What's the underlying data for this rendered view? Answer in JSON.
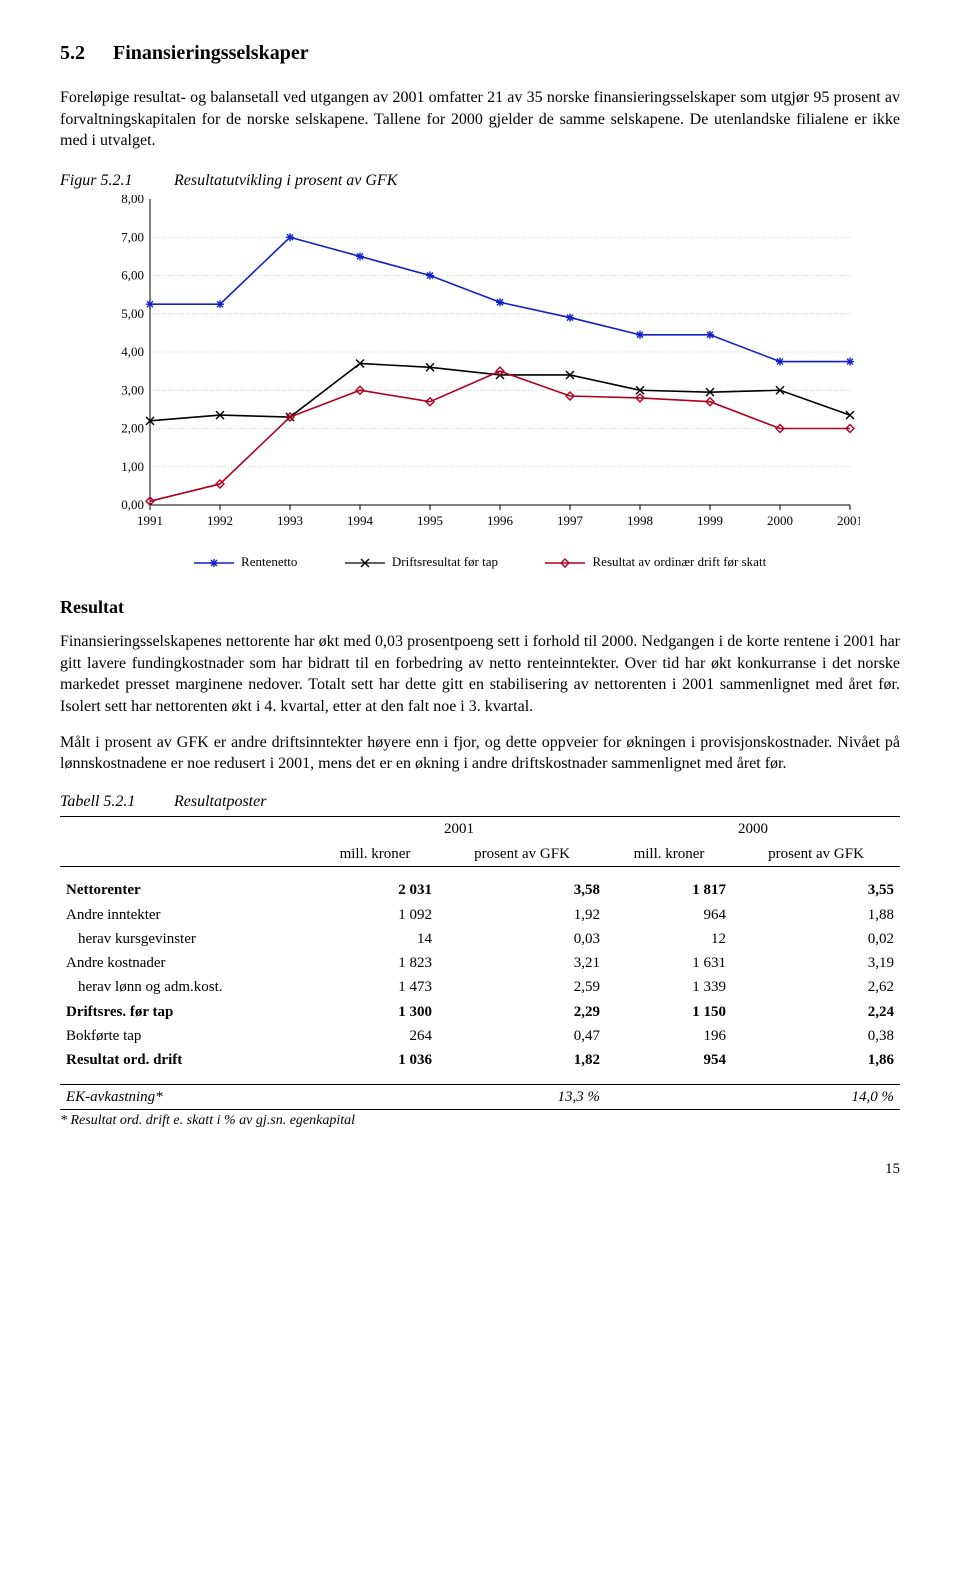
{
  "section": {
    "number": "5.2",
    "title": "Finansieringsselskaper"
  },
  "intro_p1": "Foreløpige resultat- og balansetall ved utgangen av 2001 omfatter 21 av 35 norske finansieringsselskaper som utgjør 95 prosent av forvaltningskapitalen for de norske selskapene. Tallene for 2000 gjelder de samme selskapene. De utenlandske filialene er ikke med i utvalget.",
  "figure": {
    "num": "Figur 5.2.1",
    "title": "Resultatutvikling i prosent av GFK",
    "ylim": [
      0,
      8
    ],
    "ytick_step": 1,
    "ytick_labels": [
      "0,00",
      "1,00",
      "2,00",
      "3,00",
      "4,00",
      "5,00",
      "6,00",
      "7,00",
      "8,00"
    ],
    "years": [
      1991,
      1992,
      1993,
      1994,
      1995,
      1996,
      1997,
      1998,
      1999,
      2000,
      2001
    ],
    "series": [
      {
        "name": "Rentenetto",
        "color": "#1020c8",
        "marker": "star",
        "values": [
          5.25,
          5.25,
          7.0,
          6.5,
          6.0,
          5.3,
          4.9,
          4.45,
          4.45,
          3.75,
          3.75
        ]
      },
      {
        "name": "Driftsresultat før tap",
        "color": "#000000",
        "marker": "x",
        "values": [
          2.2,
          2.35,
          2.3,
          3.7,
          3.6,
          3.4,
          3.4,
          3.0,
          2.95,
          3.0,
          2.35
        ]
      },
      {
        "name": "Resultat av ordinær drift før skatt",
        "color": "#b00020",
        "marker": "diamond",
        "values": [
          0.1,
          0.55,
          2.3,
          3.0,
          2.7,
          3.5,
          2.85,
          2.8,
          2.7,
          2.0,
          2.0
        ]
      }
    ],
    "grid_color": "#bdbdbd",
    "background_color": "#ffffff",
    "label_fontsize": 13
  },
  "resultat_head": "Resultat",
  "p2": "Finansieringsselskapenes nettorente har økt med 0,03 prosentpoeng sett i forhold til 2000. Nedgangen i de korte rentene i 2001 har gitt lavere fundingkostnader som har bidratt til en forbedring av netto renteinntekter. Over tid har økt konkurranse i det norske markedet presset marginene nedover. Totalt sett har dette gitt en stabilisering av nettorenten i 2001 sammenlignet med året før. Isolert sett har nettorenten økt i 4. kvartal, etter at den falt noe i 3. kvartal.",
  "p3": "Målt i prosent av GFK er andre driftsinntekter høyere enn i fjor, og dette oppveier for økningen i provisjonskostnader. Nivået på lønnskostnadene er noe redusert i 2001, mens det er en økning i andre driftskostnader sammenlignet med året før.",
  "table": {
    "num": "Tabell 5.2.1",
    "title": "Resultatposter",
    "years": [
      "2001",
      "2000"
    ],
    "col_sub": [
      "mill. kroner",
      "prosent av GFK",
      "mill. kroner",
      "prosent av GFK"
    ],
    "rows": [
      {
        "label": "Nettorenter",
        "bold": true,
        "v": [
          "2 031",
          "3,58",
          "1 817",
          "3,55"
        ]
      },
      {
        "label": "Andre inntekter",
        "v": [
          "1 092",
          "1,92",
          "964",
          "1,88"
        ]
      },
      {
        "label": "herav kursgevinster",
        "indent": true,
        "v": [
          "14",
          "0,03",
          "12",
          "0,02"
        ]
      },
      {
        "label": "Andre kostnader",
        "v": [
          "1 823",
          "3,21",
          "1 631",
          "3,19"
        ]
      },
      {
        "label": "herav lønn og adm.kost.",
        "indent": true,
        "v": [
          "1 473",
          "2,59",
          "1 339",
          "2,62"
        ]
      },
      {
        "label": "Driftsres. før tap",
        "bold": true,
        "v": [
          "1 300",
          "2,29",
          "1 150",
          "2,24"
        ]
      },
      {
        "label": "Bokførte tap",
        "v": [
          "264",
          "0,47",
          "196",
          "0,38"
        ]
      },
      {
        "label": "Resultat ord. drift",
        "bold": true,
        "v": [
          "1 036",
          "1,82",
          "954",
          "1,86"
        ]
      }
    ],
    "ek_row": {
      "label": "EK-avkastning*",
      "v": [
        "",
        "13,3 %",
        "",
        "14,0 %"
      ]
    },
    "footnote": "* Resultat ord. drift e. skatt i % av gj.sn. egenkapital"
  },
  "page_number": "15"
}
